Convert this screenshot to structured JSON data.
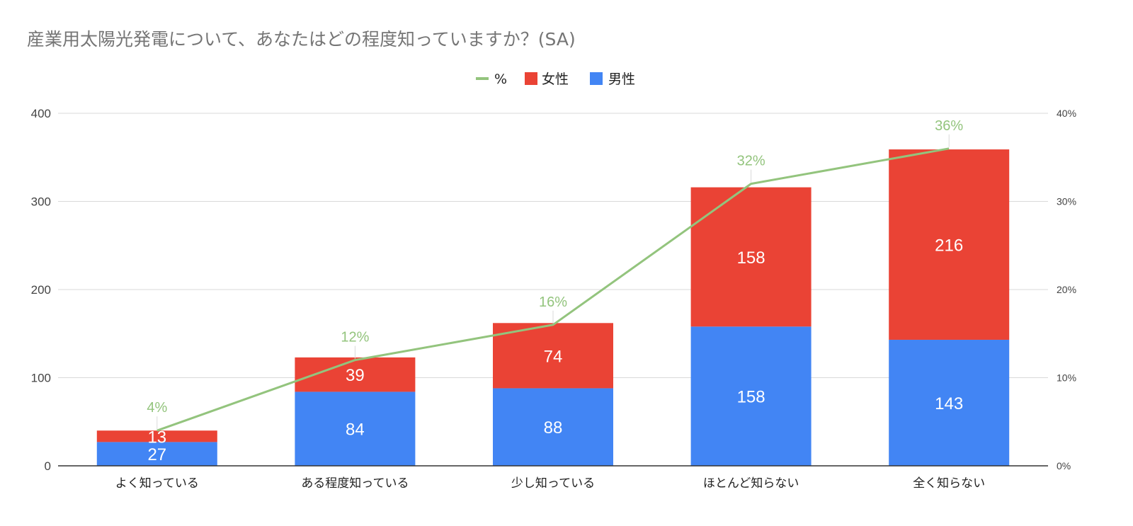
{
  "chart_data": {
    "type": "bar",
    "stacked": true,
    "title": "産業用太陽光発電について、あなたはどの程度知っていますか？(SA)",
    "categories": [
      "よく知っている",
      "ある程度知っている",
      "少し知っている",
      "ほとんど知らない",
      "全く知らない"
    ],
    "series": [
      {
        "name": "男性",
        "values": [
          27,
          84,
          88,
          158,
          143
        ],
        "color": "#4285F4",
        "axis": "left"
      },
      {
        "name": "女性",
        "values": [
          13,
          39,
          74,
          158,
          216
        ],
        "color": "#EA4335",
        "axis": "left"
      },
      {
        "name": "%",
        "type": "line",
        "values": [
          4,
          12,
          16,
          32,
          36
        ],
        "labels": [
          "4%",
          "12%",
          "16%",
          "32%",
          "36%"
        ],
        "color": "#93C47D",
        "axis": "right"
      }
    ],
    "legend": {
      "position": "top",
      "entries": [
        "%",
        "女性",
        "男性"
      ]
    },
    "y_left": {
      "min": 0,
      "max": 400,
      "ticks": [
        0,
        100,
        200,
        300,
        400
      ],
      "tick_labels": [
        "0",
        "100",
        "200",
        "300",
        "400"
      ]
    },
    "y_right": {
      "min": 0,
      "max": 40,
      "ticks": [
        0,
        10,
        20,
        30,
        40
      ],
      "tick_labels": [
        "0%",
        "10%",
        "20%",
        "30%",
        "40%"
      ]
    },
    "grid": true
  }
}
